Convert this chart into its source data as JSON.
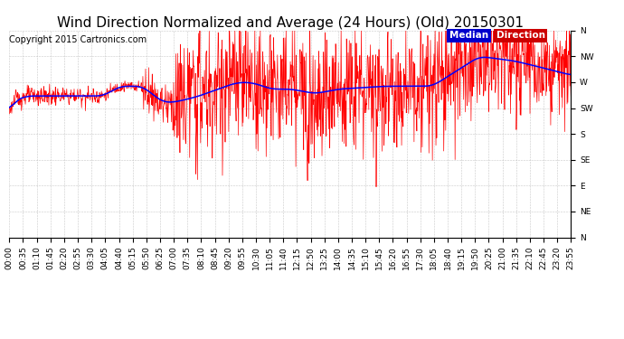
{
  "title": "Wind Direction Normalized and Average (24 Hours) (Old) 20150301",
  "copyright": "Copyright 2015 Cartronics.com",
  "background_color": "#ffffff",
  "plot_bg_color": "#ffffff",
  "grid_color": "#bbbbbb",
  "ytick_labels": [
    "N",
    "NW",
    "W",
    "SW",
    "S",
    "SE",
    "E",
    "NE",
    "N"
  ],
  "ytick_values": [
    360,
    315,
    270,
    225,
    180,
    135,
    90,
    45,
    0
  ],
  "ylim": [
    0,
    360
  ],
  "legend_median_bg": "#0000cc",
  "legend_direction_bg": "#cc0000",
  "legend_median_text": "Median",
  "legend_direction_text": "Direction",
  "x_tick_interval_minutes": 35,
  "red_line_color": "#ff0000",
  "blue_line_color": "#0000ff",
  "title_fontsize": 11,
  "copyright_fontsize": 7,
  "tick_fontsize": 6.5,
  "legend_fontsize": 7.5
}
